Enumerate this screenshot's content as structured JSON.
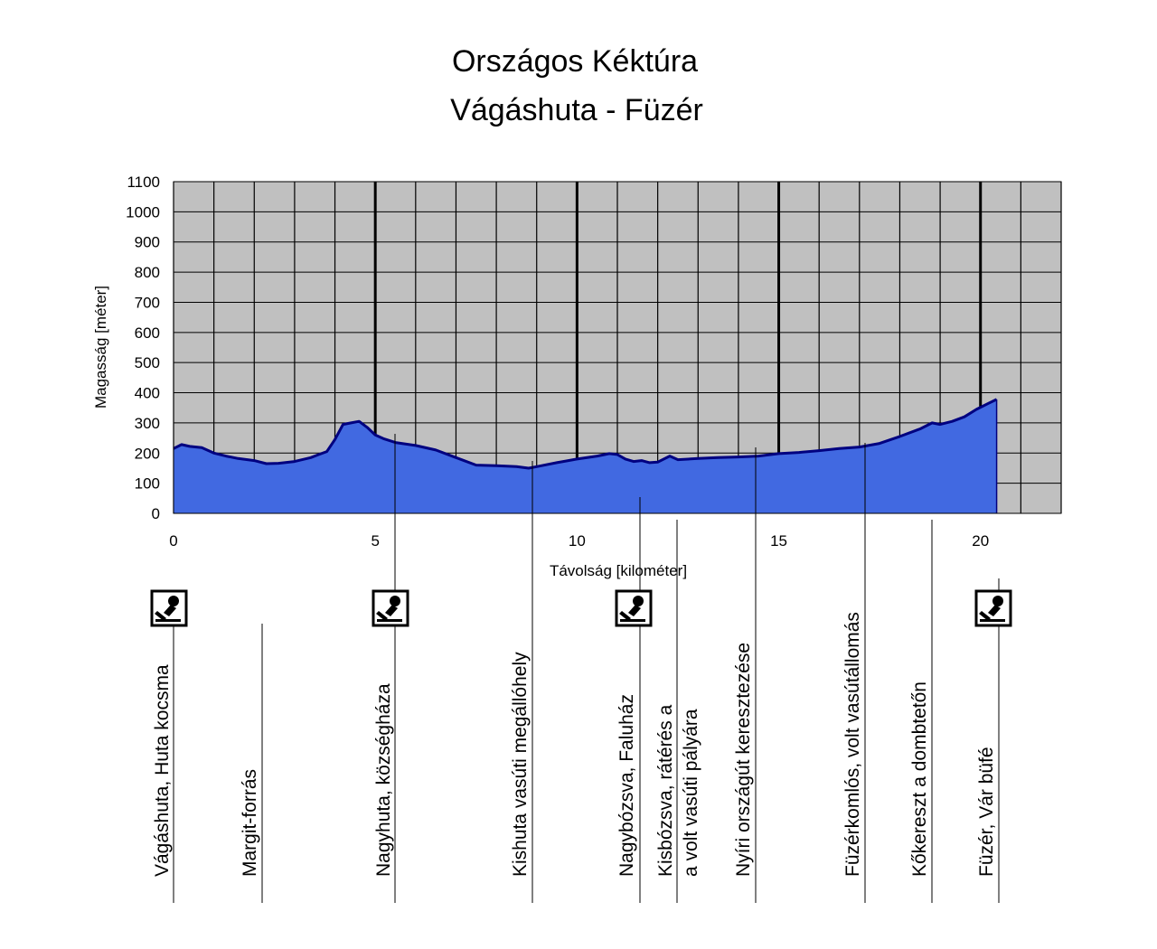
{
  "chart_data": {
    "type": "area",
    "title": "Országos Kéktúra",
    "subtitle": "Vágáshuta - Füzér",
    "xlabel": "Távolság [kilométer]",
    "ylabel": "Magasság [méter]",
    "xlim": [
      0,
      22
    ],
    "ylim": [
      0,
      1100
    ],
    "x_ticks": [
      0,
      5,
      10,
      15,
      20
    ],
    "y_ticks": [
      0,
      100,
      200,
      300,
      400,
      500,
      600,
      700,
      800,
      900,
      1000,
      1100
    ],
    "grid": true,
    "x_gridline_step": 1,
    "x_major_gridlines": [
      5,
      10,
      15,
      20
    ],
    "plot_background": "#c0c0c0",
    "fill_color": "#4169e1",
    "line_color": "#000080",
    "series": [
      {
        "x": [
          0,
          0.2,
          0.4,
          0.7,
          1.0,
          1.3,
          1.6,
          2.0,
          2.3,
          2.6,
          3.0,
          3.4,
          3.6,
          3.8,
          4.0,
          4.2,
          4.4,
          4.6,
          4.8,
          5.0,
          5.2,
          5.5,
          6.0,
          6.5,
          7.0,
          7.5,
          8.0,
          8.5,
          8.8,
          9.0,
          9.5,
          10.0,
          10.5,
          10.8,
          11.0,
          11.2,
          11.4,
          11.6,
          11.8,
          12.0,
          12.3,
          12.5,
          13.0,
          13.5,
          14.0,
          14.5,
          15.0,
          15.5,
          16.0,
          16.5,
          17.0,
          17.5,
          18.0,
          18.5,
          18.8,
          19.0,
          19.3,
          19.6,
          19.9,
          20.2,
          20.4
        ],
        "y": [
          215,
          228,
          222,
          218,
          200,
          190,
          182,
          175,
          165,
          166,
          172,
          185,
          195,
          205,
          245,
          295,
          300,
          305,
          285,
          260,
          248,
          235,
          225,
          210,
          185,
          160,
          158,
          155,
          150,
          155,
          168,
          180,
          190,
          198,
          195,
          180,
          172,
          175,
          168,
          170,
          190,
          178,
          182,
          185,
          187,
          190,
          198,
          202,
          208,
          215,
          220,
          232,
          255,
          280,
          300,
          295,
          305,
          320,
          345,
          365,
          378
        ]
      }
    ]
  },
  "waypoints": [
    {
      "label": "Vágáshuta, Huta kocsma",
      "stamp": true
    },
    {
      "label": "Margit-forrás",
      "stamp": false
    },
    {
      "label": "Nagyhuta, községháza",
      "stamp": true
    },
    {
      "label": "Kishuta vasúti megállóhely",
      "stamp": false
    },
    {
      "label": "Nagybózsva, Faluház",
      "stamp": true
    },
    {
      "label": "Kisbózsva, rátérés a",
      "label2": "a volt vasúti pályára",
      "stamp": false
    },
    {
      "label": "Nyíri országút keresztezése",
      "stamp": false
    },
    {
      "label": "Füzérkomlós, volt vasútállomás",
      "stamp": false
    },
    {
      "label": "Kőkereszt a dombtetőn",
      "stamp": false
    },
    {
      "label": "Füzér, Vár büfé",
      "stamp": true
    }
  ],
  "icons": {
    "stamp": "stamp-icon"
  }
}
